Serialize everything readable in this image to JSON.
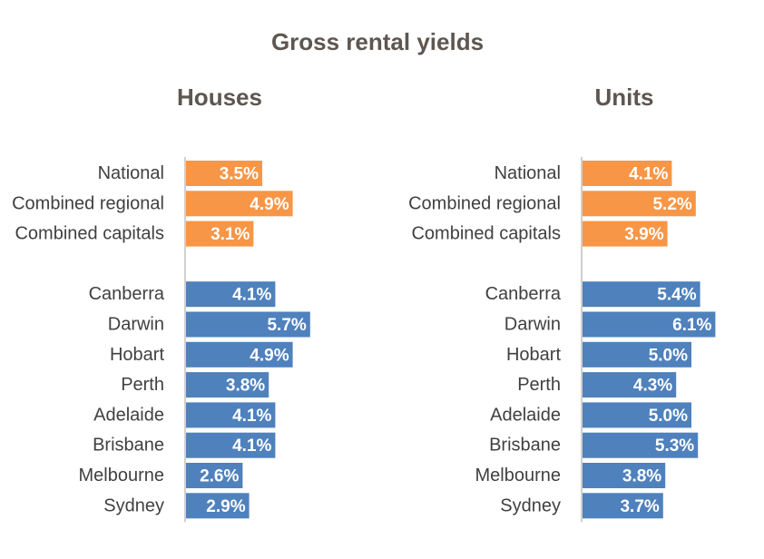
{
  "title": "Gross rental yields",
  "chart_data": [
    {
      "type": "bar",
      "orientation": "horizontal",
      "title": "Houses",
      "categories": [
        "National",
        "Combined regional",
        "Combined capitals",
        null,
        "Canberra",
        "Darwin",
        "Hobart",
        "Perth",
        "Adelaide",
        "Brisbane",
        "Melbourne",
        "Sydney"
      ],
      "values": [
        3.5,
        4.9,
        3.1,
        null,
        4.1,
        5.7,
        4.9,
        3.8,
        4.1,
        4.1,
        2.6,
        2.9
      ],
      "value_labels": [
        "3.5%",
        "4.9%",
        "3.1%",
        null,
        "4.1%",
        "5.7%",
        "4.9%",
        "3.8%",
        "4.1%",
        "4.1%",
        "2.6%",
        "2.9%"
      ],
      "colors": [
        "#f79646",
        "#f79646",
        "#f79646",
        null,
        "#4f81bd",
        "#4f81bd",
        "#4f81bd",
        "#4f81bd",
        "#4f81bd",
        "#4f81bd",
        "#4f81bd",
        "#4f81bd"
      ]
    },
    {
      "type": "bar",
      "orientation": "horizontal",
      "title": "Units",
      "categories": [
        "National",
        "Combined regional",
        "Combined capitals",
        null,
        "Canberra",
        "Darwin",
        "Hobart",
        "Perth",
        "Adelaide",
        "Brisbane",
        "Melbourne",
        "Sydney"
      ],
      "values": [
        4.1,
        5.2,
        3.9,
        null,
        5.4,
        6.1,
        5.0,
        4.3,
        5.0,
        5.3,
        3.8,
        3.7
      ],
      "value_labels": [
        "4.1%",
        "5.2%",
        "3.9%",
        null,
        "5.4%",
        "6.1%",
        "5.0%",
        "4.3%",
        "5.0%",
        "5.3%",
        "3.8%",
        "3.7%"
      ],
      "colors": [
        "#f79646",
        "#f79646",
        "#f79646",
        null,
        "#4f81bd",
        "#4f81bd",
        "#4f81bd",
        "#4f81bd",
        "#4f81bd",
        "#4f81bd",
        "#4f81bd",
        "#4f81bd"
      ]
    }
  ]
}
